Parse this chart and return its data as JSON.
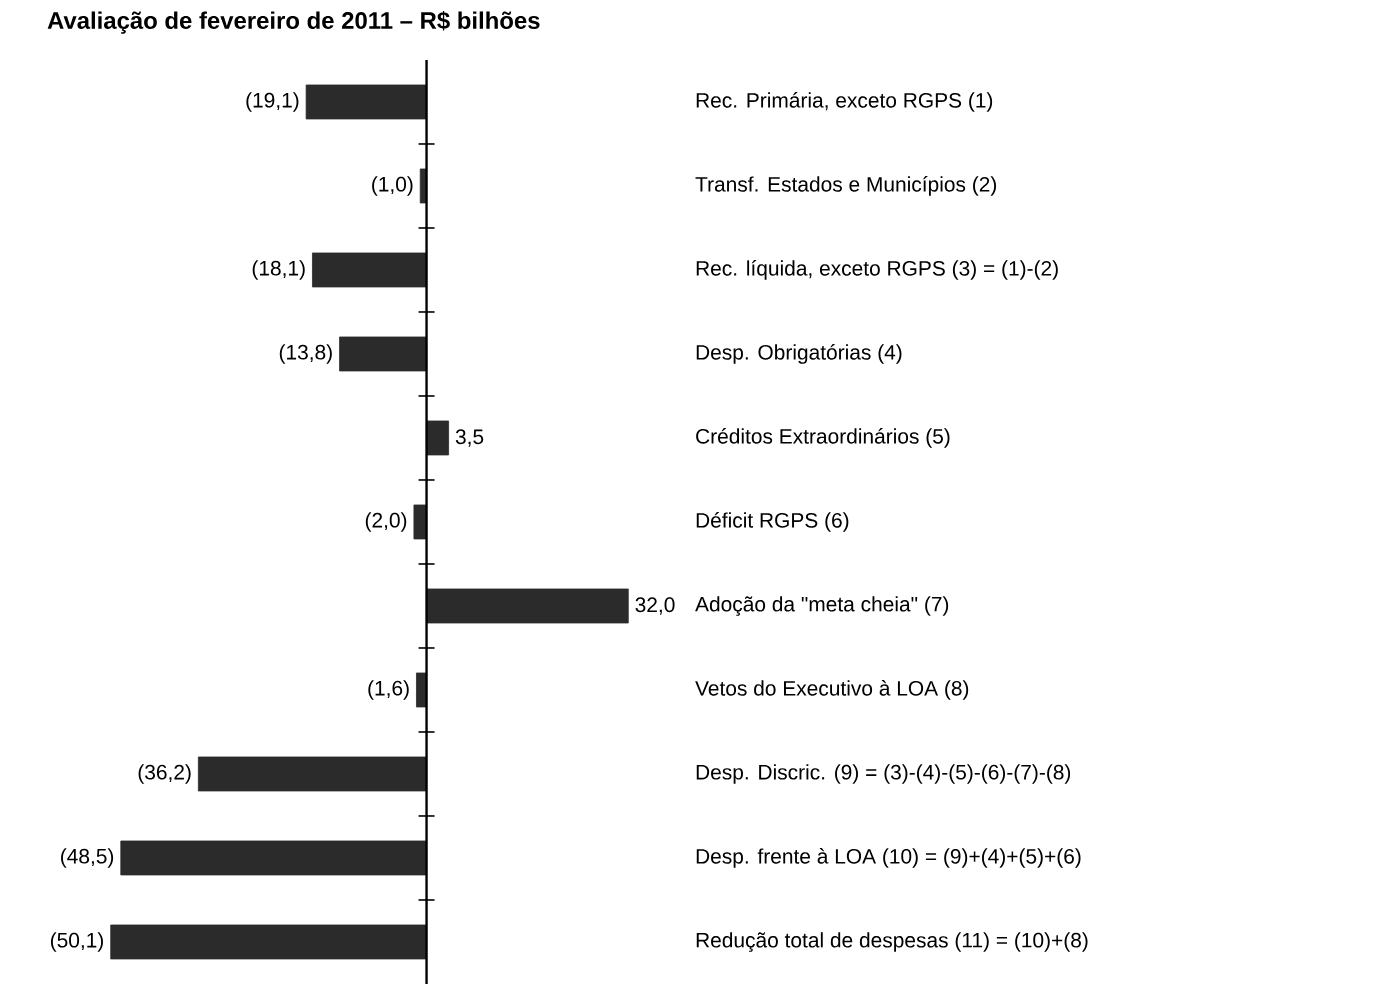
{
  "chart_data": {
    "type": "bar",
    "orientation": "horizontal",
    "title": "Avaliação de fevereiro de 2011 – R$ bilhões",
    "categories": [
      "Rec. Primária, exceto RGPS (1)",
      "Transf. Estados e Municípios (2)",
      "Rec. líquida, exceto RGPS (3) = (1)-(2)",
      "Desp. Obrigatórias (4)",
      "Créditos Extraordinários (5)",
      "Déficit RGPS (6)",
      "Adoção da \"meta cheia\" (7)",
      "Vetos do Executivo à LOA (8)",
      "Desp. Discric. (9) = (3)-(4)-(5)-(6)-(7)-(8)",
      "Desp. frente à LOA (10) = (9)+(4)+(5)+(6)",
      "Redução total de despesas (11) = (10)+(8)"
    ],
    "values": [
      -19.1,
      -1.0,
      -18.1,
      -13.8,
      3.5,
      -2.0,
      32.0,
      -1.6,
      -36.2,
      -48.5,
      -50.1
    ],
    "value_labels": [
      "(19,1)",
      "(1,0)",
      "(18,1)",
      "(13,8)",
      "3,5",
      "(2,0)",
      "32,0",
      "(1,6)",
      "(36,2)",
      "(48,5)",
      "(50,1)"
    ],
    "color": "#2b2b2b"
  }
}
